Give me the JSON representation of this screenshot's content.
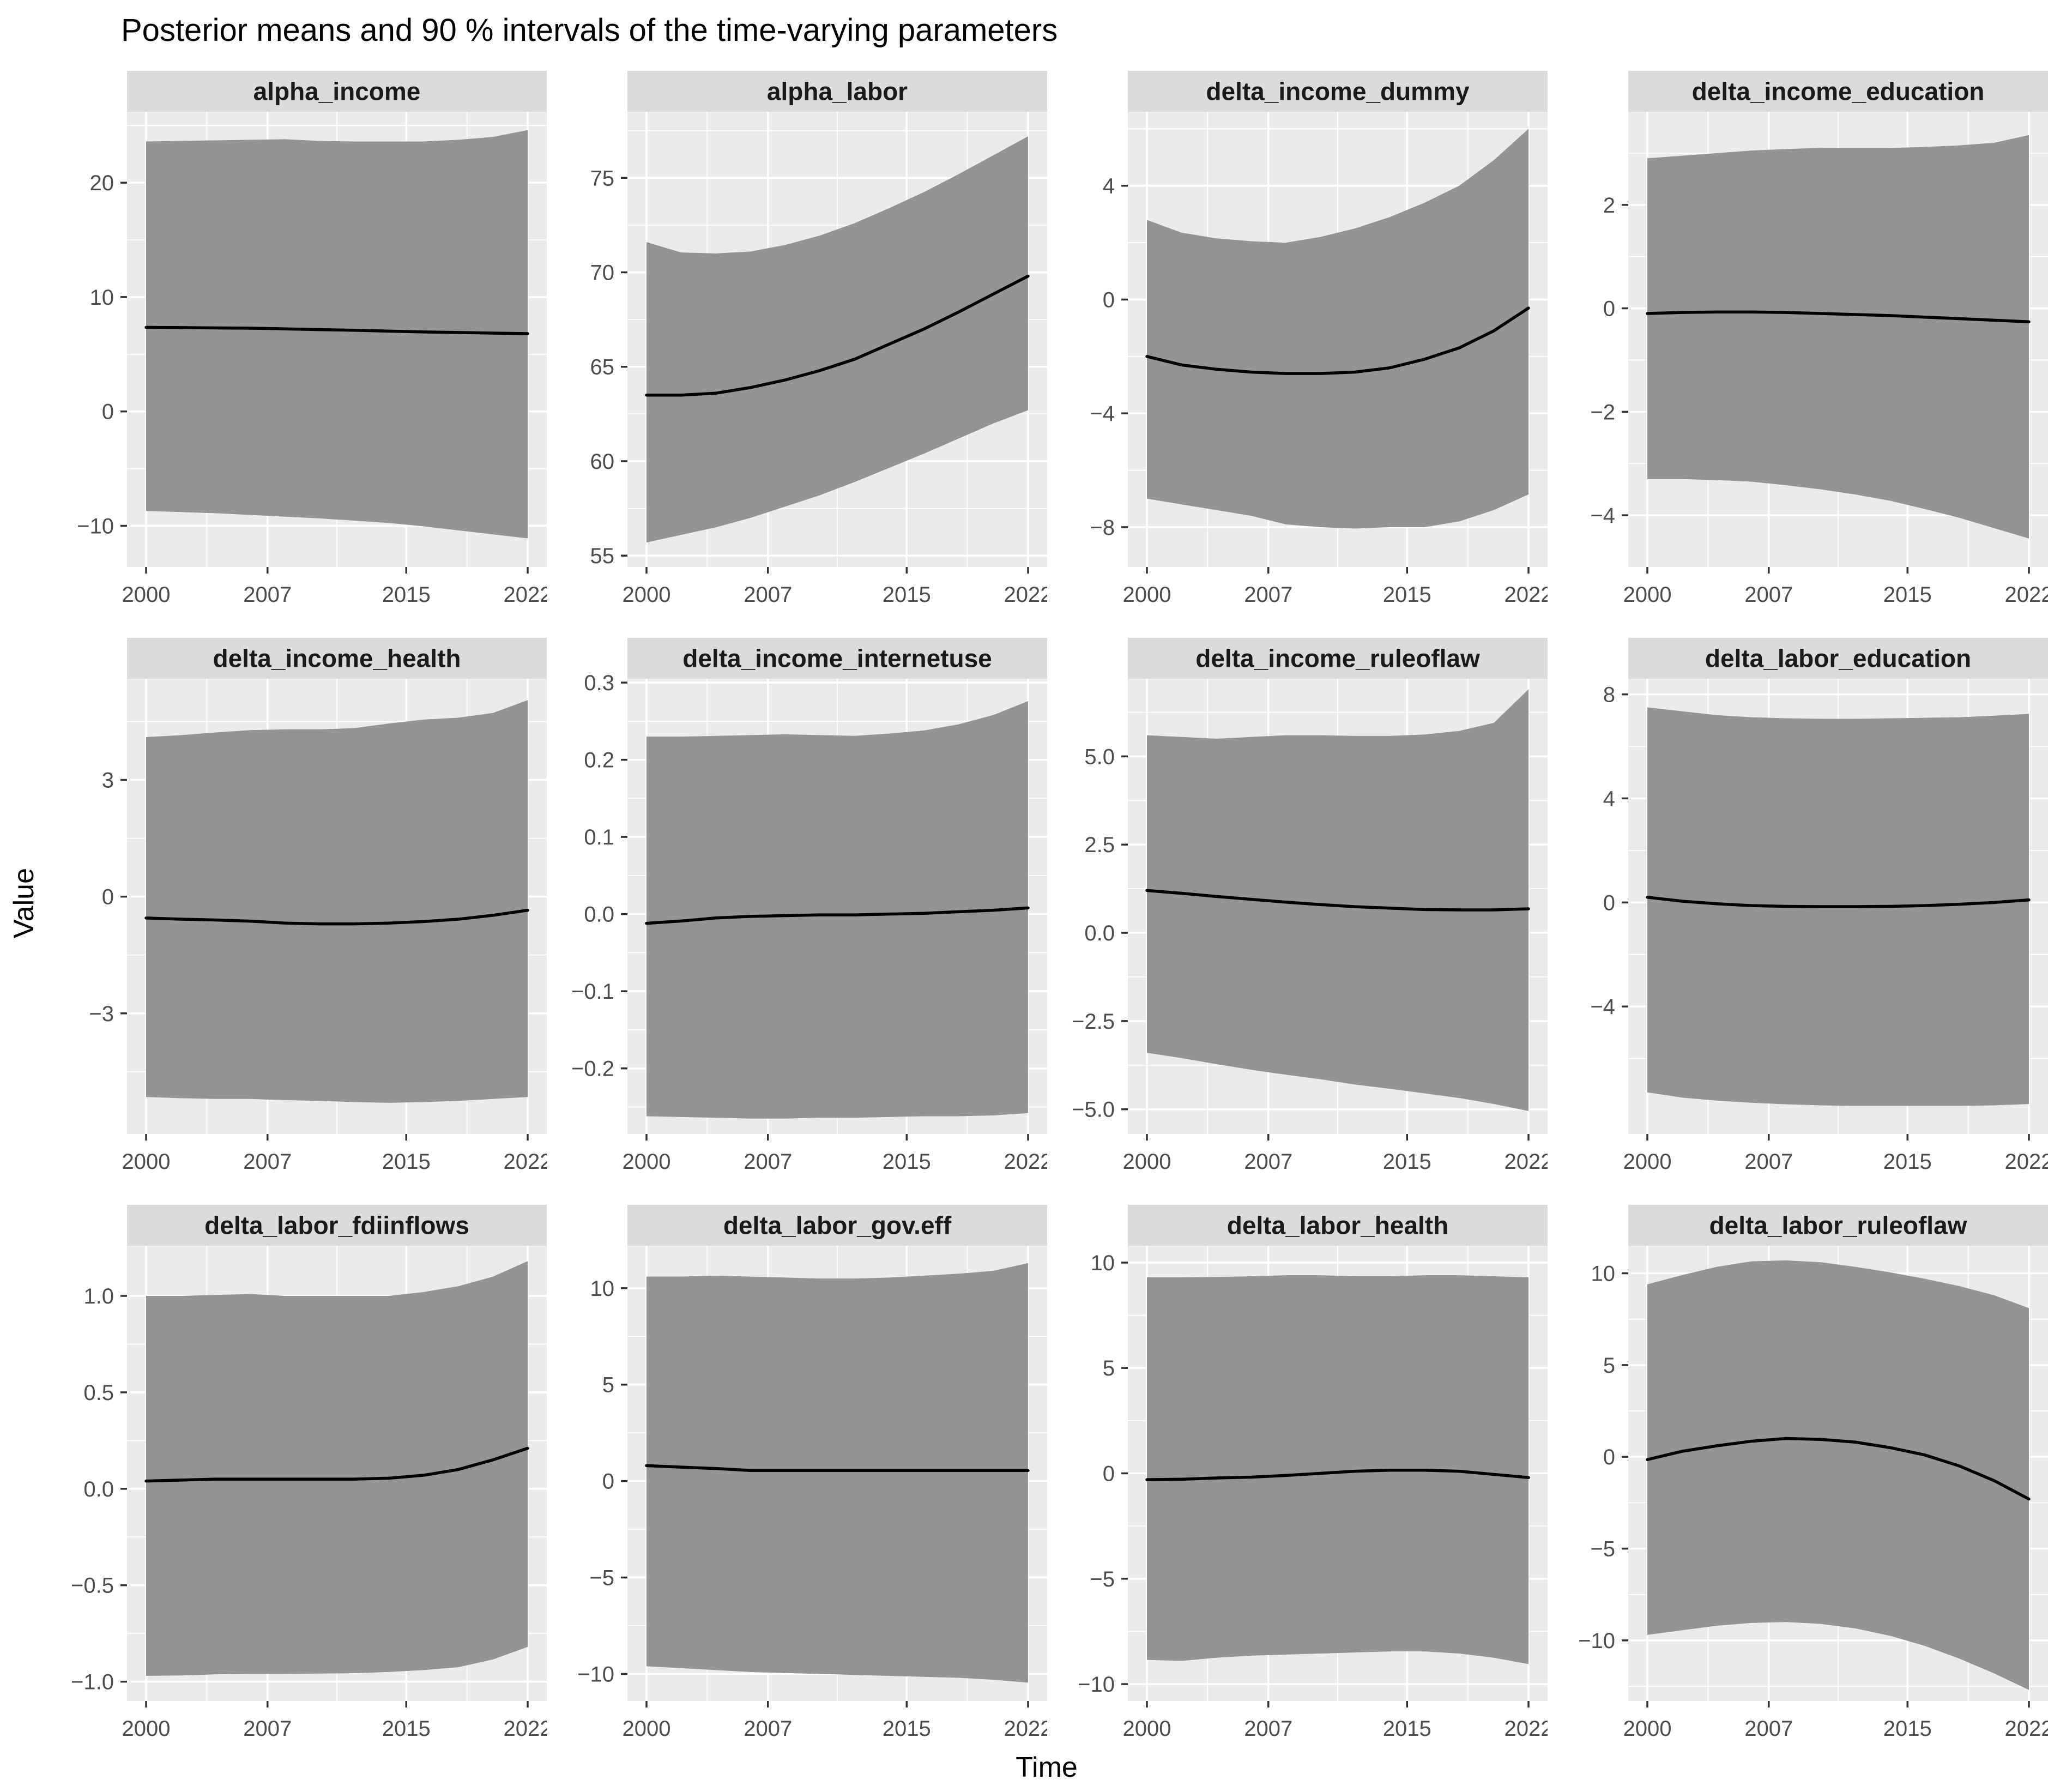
{
  "chart_data": {
    "type": "area",
    "title": "Posterior means and 90 % intervals of the time-varying parameters",
    "xlabel": "Time",
    "ylabel": "Value",
    "facet_grid": {
      "rows": 3,
      "cols": 4
    },
    "legend": "none",
    "grid": "on",
    "x": [
      2000,
      2002,
      2004,
      2006,
      2008,
      2010,
      2012,
      2014,
      2016,
      2018,
      2020,
      2022
    ],
    "xlim": [
      1998.9,
      2023.1
    ],
    "x_ticks": [
      2000,
      2007,
      2015,
      2022
    ],
    "x_tick_labels": [
      "2000",
      "2007",
      "2015",
      "2022"
    ],
    "x_minor": [
      2003.5,
      2011,
      2018.5
    ],
    "series_labels": {
      "mean": "posterior mean",
      "band": "90 % interval"
    },
    "colors": {
      "panel_bg": "#EBEBEB",
      "strip_bg": "#DBDBDB",
      "grid_major": "#FFFFFF",
      "grid_minor": "#F7F7F7",
      "ribbon": "#949494",
      "mean_line": "#000000",
      "tick_mark": "#333333",
      "tick_text": "#4D4D4D",
      "strip_text": "#1A1A1A",
      "title_text": "#000000"
    },
    "facets": [
      {
        "title": "alpha_income",
        "ylim": [
          -13.6,
          26.2
        ],
        "y_tick_values": [
          20,
          10,
          0,
          -10
        ],
        "y_tick_labels": [
          "20",
          "10",
          "0",
          "−10"
        ],
        "upper": [
          23.6,
          23.65,
          23.7,
          23.75,
          23.8,
          23.65,
          23.6,
          23.6,
          23.6,
          23.75,
          24.0,
          24.6
        ],
        "mean": [
          7.35,
          7.33,
          7.3,
          7.28,
          7.22,
          7.15,
          7.1,
          7.02,
          6.95,
          6.9,
          6.85,
          6.8
        ],
        "lower": [
          -8.7,
          -8.8,
          -8.9,
          -9.05,
          -9.2,
          -9.35,
          -9.55,
          -9.75,
          -10.05,
          -10.4,
          -10.75,
          -11.1
        ]
      },
      {
        "title": "alpha_labor",
        "ylim": [
          54.4,
          78.5
        ],
        "y_tick_values": [
          75,
          70,
          65,
          60,
          55
        ],
        "y_tick_labels": [
          "75",
          "70",
          "65",
          "60",
          "55"
        ],
        "upper": [
          71.6,
          71.05,
          71.0,
          71.1,
          71.45,
          71.95,
          72.6,
          73.4,
          74.25,
          75.2,
          76.2,
          77.2
        ],
        "mean": [
          63.5,
          63.5,
          63.6,
          63.9,
          64.3,
          64.8,
          65.4,
          66.2,
          67.0,
          67.9,
          68.85,
          69.8
        ],
        "lower": [
          55.7,
          56.1,
          56.5,
          57.0,
          57.6,
          58.2,
          58.9,
          59.65,
          60.4,
          61.2,
          62.0,
          62.7
        ]
      },
      {
        "title": "delta_income_dummy",
        "ylim": [
          -9.4,
          6.6
        ],
        "y_tick_values": [
          4,
          0,
          -4,
          -8
        ],
        "y_tick_labels": [
          "4",
          "0",
          "−4",
          "−8"
        ],
        "upper": [
          2.8,
          2.35,
          2.15,
          2.05,
          2.0,
          2.2,
          2.5,
          2.9,
          3.4,
          4.0,
          4.9,
          6.0
        ],
        "mean": [
          -2.0,
          -2.3,
          -2.45,
          -2.55,
          -2.6,
          -2.6,
          -2.55,
          -2.4,
          -2.1,
          -1.7,
          -1.1,
          -0.3
        ],
        "lower": [
          -7.0,
          -7.2,
          -7.4,
          -7.6,
          -7.9,
          -8.0,
          -8.05,
          -8.0,
          -8.0,
          -7.8,
          -7.4,
          -6.85
        ]
      },
      {
        "title": "delta_income_education",
        "ylim": [
          -5.0,
          3.8
        ],
        "y_tick_values": [
          2,
          0,
          -2,
          -4
        ],
        "y_tick_labels": [
          "2",
          "0",
          "−2",
          "−4"
        ],
        "upper": [
          2.9,
          2.95,
          3.0,
          3.05,
          3.08,
          3.1,
          3.1,
          3.1,
          3.12,
          3.15,
          3.2,
          3.35
        ],
        "mean": [
          -0.1,
          -0.08,
          -0.07,
          -0.07,
          -0.08,
          -0.1,
          -0.12,
          -0.14,
          -0.17,
          -0.2,
          -0.23,
          -0.26
        ],
        "lower": [
          -3.3,
          -3.3,
          -3.32,
          -3.35,
          -3.42,
          -3.5,
          -3.6,
          -3.72,
          -3.88,
          -4.05,
          -4.25,
          -4.45
        ]
      },
      {
        "title": "delta_income_health",
        "ylim": [
          -6.1,
          5.6
        ],
        "y_tick_values": [
          3,
          0,
          -3
        ],
        "y_tick_labels": [
          "3",
          "0",
          "−3"
        ],
        "upper": [
          4.1,
          4.15,
          4.22,
          4.28,
          4.3,
          4.3,
          4.33,
          4.45,
          4.55,
          4.6,
          4.72,
          5.05
        ],
        "mean": [
          -0.55,
          -0.58,
          -0.6,
          -0.63,
          -0.68,
          -0.7,
          -0.7,
          -0.68,
          -0.64,
          -0.58,
          -0.48,
          -0.35
        ],
        "lower": [
          -5.15,
          -5.18,
          -5.2,
          -5.2,
          -5.23,
          -5.25,
          -5.28,
          -5.3,
          -5.28,
          -5.25,
          -5.2,
          -5.15
        ]
      },
      {
        "title": "delta_income_internetuse",
        "ylim": [
          -0.285,
          0.305
        ],
        "y_tick_values": [
          0.3,
          0.2,
          0.1,
          0.0,
          -0.1,
          -0.2
        ],
        "y_tick_labels": [
          "0.3",
          "0.2",
          "0.1",
          "0.0",
          "−0.1",
          "−0.2"
        ],
        "upper": [
          0.23,
          0.23,
          0.231,
          0.232,
          0.233,
          0.232,
          0.231,
          0.234,
          0.238,
          0.246,
          0.258,
          0.276
        ],
        "mean": [
          -0.012,
          -0.009,
          -0.005,
          -0.003,
          -0.002,
          -0.001,
          -0.001,
          0.0,
          0.001,
          0.003,
          0.005,
          0.008
        ],
        "lower": [
          -0.262,
          -0.263,
          -0.264,
          -0.265,
          -0.265,
          -0.264,
          -0.264,
          -0.263,
          -0.262,
          -0.262,
          -0.261,
          -0.258
        ]
      },
      {
        "title": "delta_income_ruleoflaw",
        "ylim": [
          -5.7,
          7.2
        ],
        "y_tick_values": [
          5.0,
          2.5,
          0.0,
          -2.5,
          -5.0
        ],
        "y_tick_labels": [
          "5.0",
          "2.5",
          "0.0",
          "−2.5",
          "−5.0"
        ],
        "upper": [
          5.6,
          5.55,
          5.5,
          5.55,
          5.6,
          5.6,
          5.58,
          5.58,
          5.62,
          5.72,
          5.95,
          6.9
        ],
        "mean": [
          1.2,
          1.12,
          1.03,
          0.95,
          0.87,
          0.8,
          0.74,
          0.7,
          0.66,
          0.65,
          0.65,
          0.68
        ],
        "lower": [
          -3.4,
          -3.55,
          -3.72,
          -3.88,
          -4.02,
          -4.15,
          -4.3,
          -4.42,
          -4.55,
          -4.68,
          -4.85,
          -5.05
        ]
      },
      {
        "title": "delta_labor_education",
        "ylim": [
          -8.9,
          8.6
        ],
        "y_tick_values": [
          8,
          4,
          0,
          -4
        ],
        "y_tick_labels": [
          "8",
          "4",
          "0",
          "−4"
        ],
        "upper": [
          7.5,
          7.35,
          7.2,
          7.12,
          7.08,
          7.06,
          7.06,
          7.08,
          7.1,
          7.12,
          7.18,
          7.25
        ],
        "mean": [
          0.2,
          0.05,
          -0.05,
          -0.12,
          -0.15,
          -0.16,
          -0.16,
          -0.15,
          -0.12,
          -0.07,
          0.0,
          0.1
        ],
        "lower": [
          -7.3,
          -7.5,
          -7.62,
          -7.7,
          -7.76,
          -7.8,
          -7.82,
          -7.82,
          -7.82,
          -7.82,
          -7.8,
          -7.75
        ]
      },
      {
        "title": "delta_labor_fdiinflows",
        "ylim": [
          -1.1,
          1.26
        ],
        "y_tick_values": [
          1.0,
          0.5,
          0.0,
          -0.5,
          -1.0
        ],
        "y_tick_labels": [
          "1.0",
          "0.5",
          "0.0",
          "−0.5",
          "−1.0"
        ],
        "upper": [
          1.0,
          1.0,
          1.005,
          1.01,
          1.0,
          1.0,
          1.0,
          1.0,
          1.02,
          1.05,
          1.1,
          1.18
        ],
        "mean": [
          0.04,
          0.045,
          0.05,
          0.05,
          0.05,
          0.05,
          0.05,
          0.055,
          0.07,
          0.1,
          0.15,
          0.21
        ],
        "lower": [
          -0.97,
          -0.968,
          -0.962,
          -0.96,
          -0.96,
          -0.958,
          -0.956,
          -0.95,
          -0.94,
          -0.925,
          -0.885,
          -0.82
        ]
      },
      {
        "title": "delta_labor_gov.eff",
        "ylim": [
          -11.4,
          12.2
        ],
        "y_tick_values": [
          10,
          5,
          0,
          -5,
          -10
        ],
        "y_tick_labels": [
          "10",
          "5",
          "0",
          "−5",
          "−10"
        ],
        "upper": [
          10.6,
          10.6,
          10.65,
          10.6,
          10.55,
          10.5,
          10.5,
          10.55,
          10.65,
          10.75,
          10.9,
          11.3
        ],
        "mean": [
          0.8,
          0.72,
          0.65,
          0.55,
          0.55,
          0.55,
          0.55,
          0.55,
          0.55,
          0.55,
          0.55,
          0.55
        ],
        "lower": [
          -9.6,
          -9.7,
          -9.8,
          -9.9,
          -9.95,
          -10.0,
          -10.05,
          -10.1,
          -10.15,
          -10.2,
          -10.3,
          -10.45
        ]
      },
      {
        "title": "delta_labor_health",
        "ylim": [
          -10.8,
          10.8
        ],
        "y_tick_values": [
          10,
          5,
          0,
          -5,
          -10
        ],
        "y_tick_labels": [
          "10",
          "5",
          "0",
          "−5",
          "−10"
        ],
        "upper": [
          9.3,
          9.3,
          9.32,
          9.35,
          9.4,
          9.4,
          9.35,
          9.35,
          9.4,
          9.4,
          9.35,
          9.3
        ],
        "mean": [
          -0.3,
          -0.28,
          -0.22,
          -0.18,
          -0.1,
          0.0,
          0.1,
          0.15,
          0.15,
          0.1,
          -0.05,
          -0.2
        ],
        "lower": [
          -8.85,
          -8.9,
          -8.75,
          -8.65,
          -8.6,
          -8.55,
          -8.5,
          -8.45,
          -8.45,
          -8.55,
          -8.75,
          -9.05
        ]
      },
      {
        "title": "delta_labor_ruleoflaw",
        "ylim": [
          -13.3,
          11.5
        ],
        "y_tick_values": [
          10,
          5,
          0,
          -5,
          -10
        ],
        "y_tick_labels": [
          "10",
          "5",
          "0",
          "−5",
          "−10"
        ],
        "upper": [
          9.4,
          9.9,
          10.35,
          10.65,
          10.7,
          10.6,
          10.35,
          10.05,
          9.7,
          9.3,
          8.8,
          8.1
        ],
        "mean": [
          -0.15,
          0.3,
          0.6,
          0.85,
          1.0,
          0.95,
          0.8,
          0.5,
          0.1,
          -0.5,
          -1.3,
          -2.3
        ],
        "lower": [
          -9.7,
          -9.45,
          -9.2,
          -9.05,
          -9.0,
          -9.1,
          -9.35,
          -9.75,
          -10.3,
          -11.0,
          -11.8,
          -12.7
        ]
      }
    ]
  }
}
